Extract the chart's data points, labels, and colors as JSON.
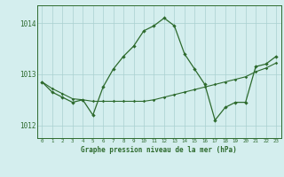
{
  "line1_x": [
    0,
    1,
    2,
    3,
    4,
    5,
    6,
    7,
    8,
    9,
    10,
    11,
    12,
    13,
    14,
    15,
    16,
    17,
    18,
    19,
    20,
    21,
    22,
    23
  ],
  "line1_y": [
    1012.85,
    1012.65,
    1012.55,
    1012.45,
    1012.5,
    1012.2,
    1012.75,
    1013.1,
    1013.35,
    1013.55,
    1013.85,
    1013.95,
    1014.1,
    1013.95,
    1013.4,
    1013.1,
    1012.8,
    1012.1,
    1012.35,
    1012.45,
    1012.45,
    1013.15,
    1013.2,
    1013.35
  ],
  "line2_x": [
    0,
    1,
    2,
    3,
    4,
    5,
    6,
    7,
    8,
    9,
    10,
    11,
    12,
    13,
    14,
    15,
    16,
    17,
    18,
    19,
    20,
    21,
    22,
    23
  ],
  "line2_y": [
    1012.85,
    1012.72,
    1012.62,
    1012.52,
    1012.5,
    1012.47,
    1012.47,
    1012.47,
    1012.47,
    1012.47,
    1012.47,
    1012.5,
    1012.55,
    1012.6,
    1012.65,
    1012.7,
    1012.75,
    1012.8,
    1012.85,
    1012.9,
    1012.95,
    1013.05,
    1013.12,
    1013.22
  ],
  "line_color": "#2d6a2d",
  "bg_color": "#d4eeee",
  "grid_color": "#aad0d0",
  "title": "Graphe pression niveau de la mer (hPa)",
  "ylim": [
    1011.75,
    1014.35
  ],
  "yticks": [
    1012,
    1013,
    1014
  ],
  "xlim": [
    -0.5,
    23.5
  ],
  "xticks": [
    0,
    1,
    2,
    3,
    4,
    5,
    6,
    7,
    8,
    9,
    10,
    11,
    12,
    13,
    14,
    15,
    16,
    17,
    18,
    19,
    20,
    21,
    22,
    23
  ]
}
